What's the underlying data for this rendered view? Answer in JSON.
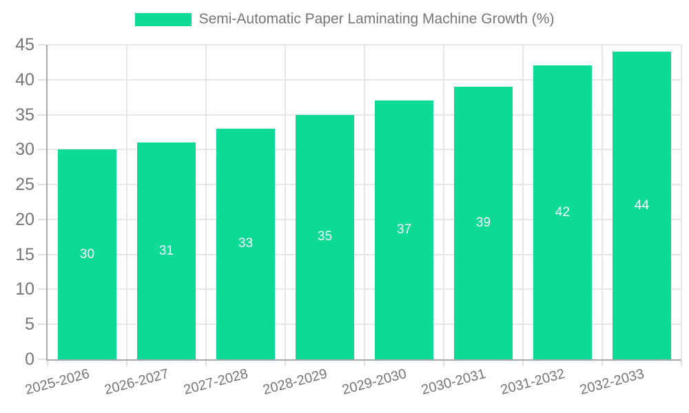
{
  "chart_data": {
    "type": "bar",
    "title": "Semi-Automatic Paper Laminating Machine Growth (%)",
    "categories": [
      "2025-2026",
      "2026-2027",
      "2027-2028",
      "2028-2029",
      "2029-2030",
      "2030-2031",
      "2031-2032",
      "2032-2033"
    ],
    "values": [
      30,
      31,
      33,
      35,
      37,
      39,
      42,
      44
    ],
    "xlabel": "",
    "ylabel": "",
    "ylim": [
      0,
      45
    ],
    "ytick_step": 5,
    "grid": true,
    "legend_position": "top-center",
    "value_labels": "centered-inside-bars",
    "colors": {
      "bar": "#0ddb95",
      "axis_line": "#a9a9a9",
      "grid_line": "#e7e7e7",
      "tick": "#e0e0e0",
      "text": "#757575",
      "value_label": "#ffffff",
      "background": "#ffffff"
    }
  }
}
